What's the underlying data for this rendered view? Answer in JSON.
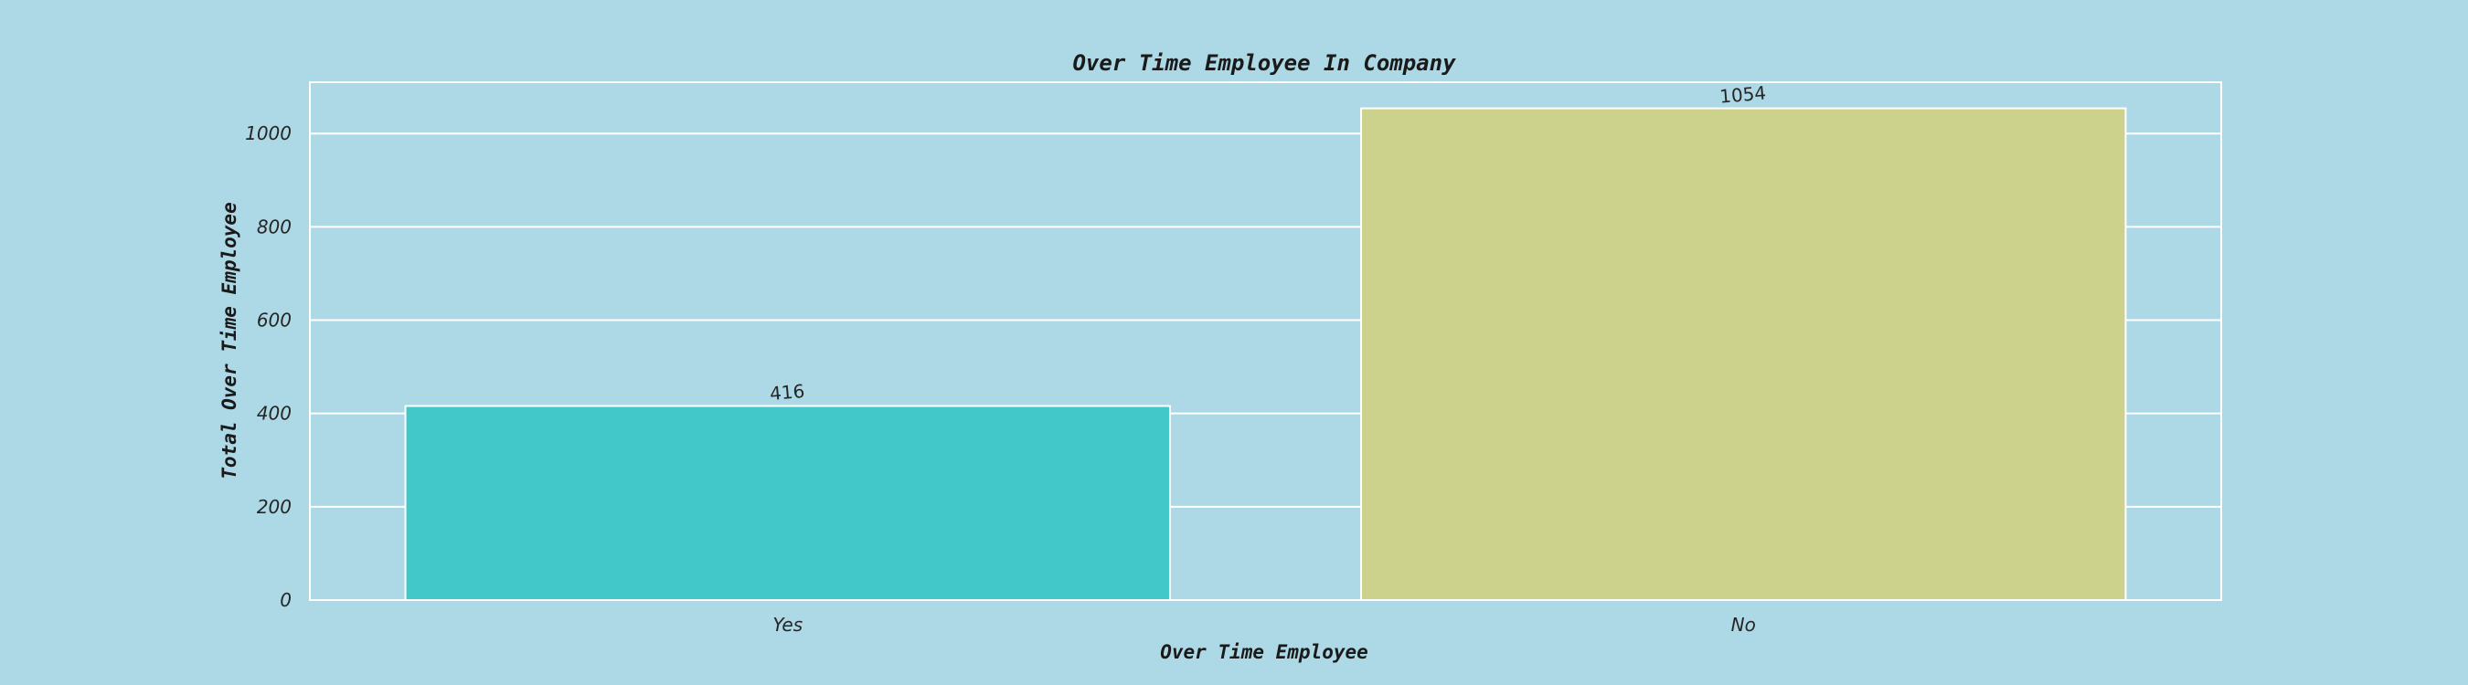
{
  "chart_data": {
    "type": "bar",
    "title": "Over Time Employee In Company",
    "xlabel": "Over Time Employee",
    "ylabel": "Total Over Time Employee",
    "categories": [
      "Yes",
      "No"
    ],
    "values": [
      416,
      1054
    ],
    "data_labels": [
      "416",
      "1054"
    ],
    "bar_colors": [
      "#42c8c8",
      "#ccd28c"
    ],
    "ylim": [
      0,
      1110
    ],
    "yticks": [
      0,
      200,
      400,
      600,
      800,
      1000
    ],
    "grid": true,
    "legend": false
  },
  "colors": {
    "background": "#add8e6",
    "grid": "#ffffff",
    "text": "#1a1a1a"
  }
}
